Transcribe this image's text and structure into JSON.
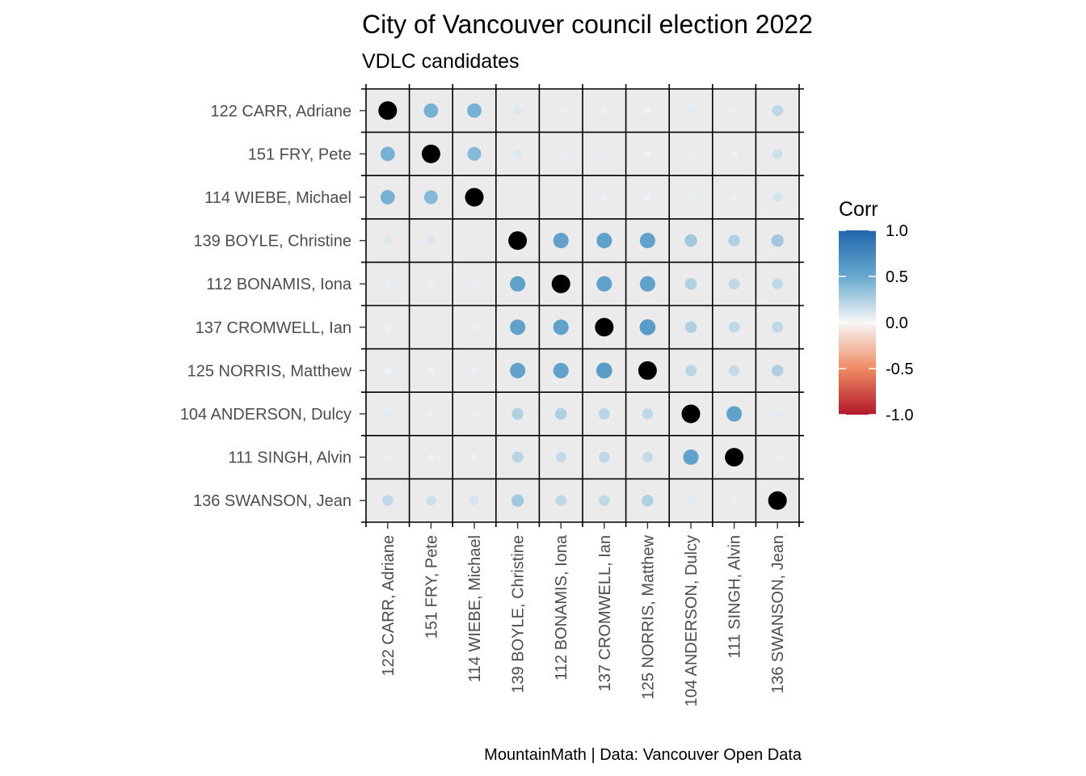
{
  "chart_data": {
    "type": "heatmap",
    "title": "City of Vancouver council election 2022",
    "subtitle": "VDLC candidates",
    "caption": "MountainMath | Data: Vancouver Open Data",
    "legend_title": "Corr",
    "legend_ticks": [
      "1.0",
      "0.5",
      "0.0",
      "-0.5",
      "-1.0"
    ],
    "legend_range": [
      -1,
      1
    ],
    "colors": {
      "negative": "#b2182b",
      "zero": "#f7f7f7",
      "positive": "#2166ac",
      "diagonal": "#000000",
      "panel": "#ebebeb",
      "grid": "#000000"
    },
    "labels": [
      "122 CARR, Adriane",
      "151 FRY, Pete",
      "114 WIEBE, Michael",
      "139 BOYLE, Christine",
      "112 BONAMIS, Iona",
      "137 CROMWELL, Ian",
      "125 NORRIS, Matthew",
      "104 ANDERSON, Dulcy",
      "111 SINGH, Alvin",
      "136 SWANSON, Jean"
    ],
    "matrix": [
      [
        1.0,
        0.45,
        0.45,
        0.1,
        0.05,
        0.03,
        0.03,
        0.08,
        0.05,
        0.2
      ],
      [
        0.45,
        1.0,
        0.4,
        0.1,
        0.05,
        0.06,
        0.04,
        0.05,
        0.04,
        0.15
      ],
      [
        0.45,
        0.4,
        1.0,
        0.06,
        0.06,
        0.05,
        0.04,
        0.05,
        0.04,
        0.12
      ],
      [
        0.1,
        0.1,
        0.06,
        1.0,
        0.55,
        0.55,
        0.55,
        0.3,
        0.25,
        0.3
      ],
      [
        0.05,
        0.05,
        0.06,
        0.55,
        1.0,
        0.55,
        0.55,
        0.25,
        0.2,
        0.2
      ],
      [
        0.03,
        0.06,
        0.05,
        0.55,
        0.55,
        1.0,
        0.6,
        0.25,
        0.2,
        0.2
      ],
      [
        0.03,
        0.04,
        0.04,
        0.55,
        0.55,
        0.6,
        1.0,
        0.22,
        0.18,
        0.25
      ],
      [
        0.08,
        0.05,
        0.05,
        0.25,
        0.25,
        0.22,
        0.2,
        1.0,
        0.55,
        0.08
      ],
      [
        0.05,
        0.04,
        0.04,
        0.22,
        0.18,
        0.2,
        0.18,
        0.55,
        1.0,
        0.05
      ],
      [
        0.2,
        0.15,
        0.12,
        0.3,
        0.2,
        0.2,
        0.25,
        0.08,
        0.05,
        1.0
      ]
    ]
  }
}
